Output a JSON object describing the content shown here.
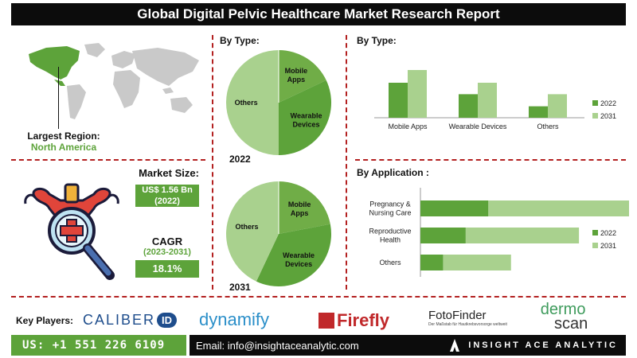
{
  "header": {
    "title": "Global Digital Pelvic Healthcare Market Research Report"
  },
  "region": {
    "label": "Largest Region:",
    "value": "North America"
  },
  "market_size": {
    "label": "Market Size:",
    "value": "US$ 1.56 Bn",
    "year": "(2022)"
  },
  "cagr": {
    "label": "CAGR",
    "period": "(2023-2031)",
    "value": "18.1%"
  },
  "pies": {
    "title": "By Type:",
    "year_2022": "2022",
    "year_2031": "2031"
  },
  "type_bars": {
    "title": "By Type:"
  },
  "app_bars": {
    "title": "By Application :"
  },
  "key_players": {
    "label": "Key Players:",
    "logos": [
      "CALIBER",
      "ID",
      "dynamify",
      "Firefly",
      "FotoFinder",
      "Der Maßstab für Hautkrebsvorsorge weltweit",
      "dermo",
      "scan"
    ]
  },
  "footer": {
    "phone": "US: +1 551 226 6109",
    "email": "Email: info@insightaceanalytic.com",
    "brand": "INSIGHT ACE ANALYTIC"
  },
  "colors": {
    "dark_green": "#5da33a",
    "light_green": "#a9d18e",
    "mid_green": "#70ad47",
    "accent_red": "#b32020"
  },
  "chart_data": [
    {
      "type": "pie",
      "title": "By Type:",
      "year": "2022",
      "categories": [
        "Mobile Apps",
        "Wearable Devices",
        "Others"
      ],
      "values": [
        18,
        32,
        50
      ]
    },
    {
      "type": "pie",
      "title": "By Type:",
      "year": "2031",
      "categories": [
        "Mobile Apps",
        "Wearable Devices",
        "Others"
      ],
      "values": [
        22,
        35,
        43
      ]
    },
    {
      "type": "bar",
      "title": "By Type:",
      "categories": [
        "Mobile Apps",
        "Wearable Devices",
        "Others"
      ],
      "series": [
        {
          "name": "2022",
          "values": [
            0.55,
            0.37,
            0.18
          ]
        },
        {
          "name": "2031",
          "values": [
            0.75,
            0.55,
            0.37
          ]
        }
      ],
      "ylim": [
        0,
        1
      ],
      "legend": "right"
    },
    {
      "type": "bar",
      "orientation": "horizontal",
      "title": "By Application :",
      "categories": [
        "Pregnancy & Nursing Care",
        "Reproductive Health",
        "Others"
      ],
      "series": [
        {
          "name": "2022",
          "values": [
            0.6,
            0.4,
            0.2
          ]
        },
        {
          "name": "2031",
          "values": [
            1.4,
            1.0,
            0.6
          ]
        }
      ],
      "xlim": [
        0,
        1.8
      ],
      "legend": "right"
    }
  ]
}
